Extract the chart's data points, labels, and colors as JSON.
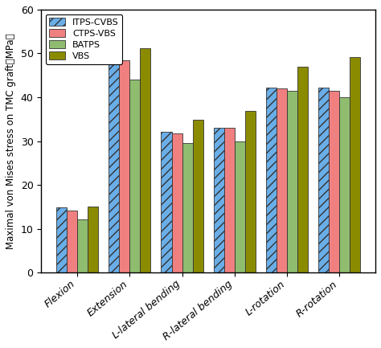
{
  "categories": [
    "Flexion",
    "Extension",
    "L-lateral bending",
    "R-lateral bending",
    "L-rotation",
    "R-rotation"
  ],
  "series": {
    "ITPS-CVBS": [
      14.8,
      50.2,
      32.2,
      33.0,
      42.2,
      42.2
    ],
    "CTPS-VBS": [
      14.2,
      48.5,
      31.7,
      33.0,
      42.0,
      41.5
    ],
    "BATPS": [
      12.2,
      44.0,
      29.5,
      30.0,
      41.5,
      40.0
    ],
    "VBS": [
      15.0,
      51.2,
      34.8,
      36.8,
      47.0,
      49.2
    ]
  },
  "colors": {
    "ITPS-CVBS": "#6aaee8",
    "CTPS-VBS": "#f08080",
    "BATPS": "#8fbc6f",
    "VBS": "#8b8b00"
  },
  "ylabel": "Maximal von Mises stress on TMC graft（MPa）",
  "ylim": [
    0,
    60
  ],
  "yticks": [
    0,
    10,
    20,
    30,
    40,
    50,
    60
  ],
  "bar_width": 0.2,
  "legend_labels": [
    "ITPS-CVBS",
    "CTPS-VBS",
    "BATPS",
    "VBS"
  ],
  "hatch": "///",
  "fig_width": 4.74,
  "fig_height": 4.33,
  "dpi": 100
}
